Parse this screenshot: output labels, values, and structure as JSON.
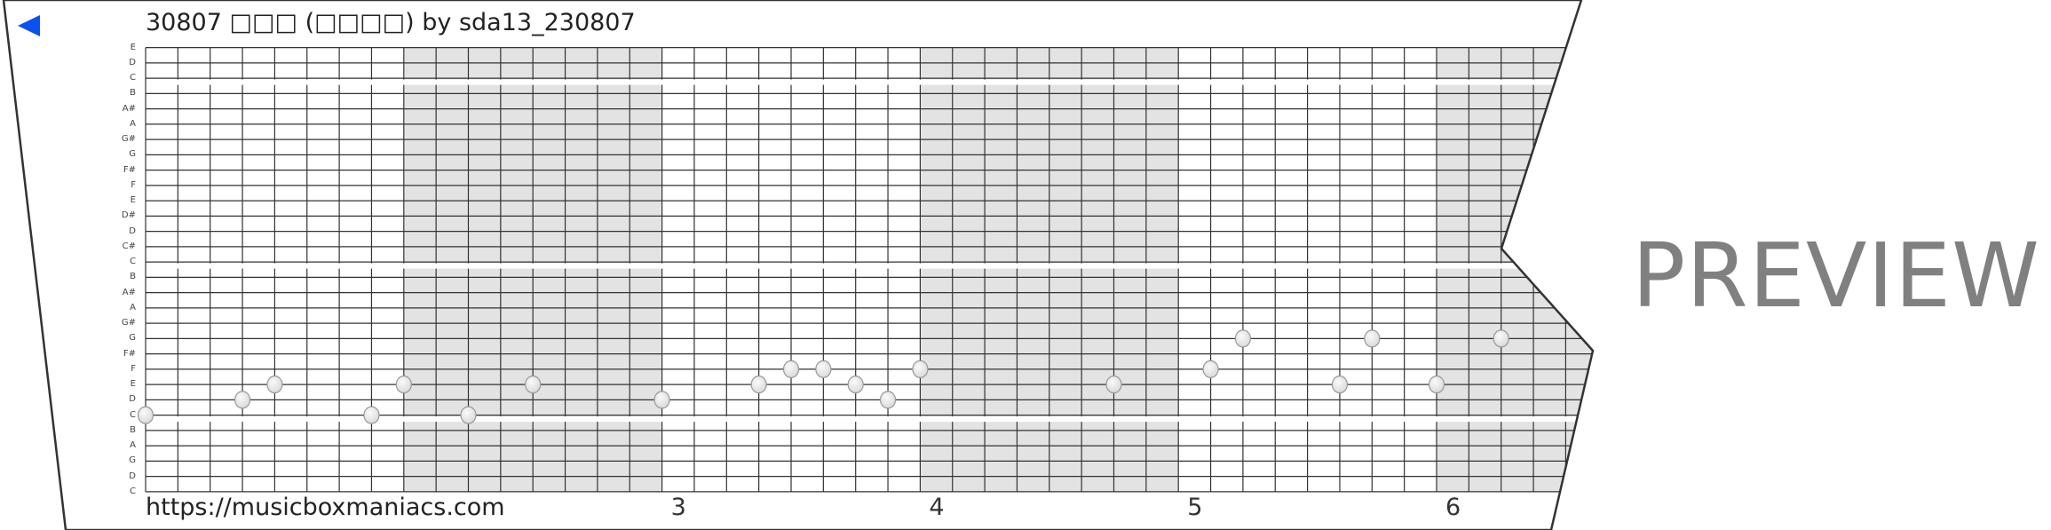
{
  "header": {
    "title": "30807 □□□ (□□□□) by sda13_230807",
    "back_icon": "triangle-left-icon",
    "back_color": "#0a52f0"
  },
  "grid": {
    "row_labels": [
      "E",
      "D",
      "C",
      "B",
      "A#",
      "A",
      "G#",
      "G",
      "F#",
      "F",
      "E",
      "D#",
      "D",
      "C#",
      "C",
      "B",
      "A#",
      "A",
      "G#",
      "G",
      "F#",
      "F",
      "E",
      "D",
      "C",
      "B",
      "A",
      "G",
      "D",
      "C"
    ],
    "measure_labels": [
      "3",
      "4",
      "5",
      "6"
    ],
    "shaded_color": "#e3e3e3",
    "notes": [
      {
        "col": 0,
        "row": 24
      },
      {
        "col": 3,
        "row": 23
      },
      {
        "col": 4,
        "row": 22
      },
      {
        "col": 7,
        "row": 24
      },
      {
        "col": 8,
        "row": 22
      },
      {
        "col": 10,
        "row": 24
      },
      {
        "col": 12,
        "row": 22
      },
      {
        "col": 16,
        "row": 23
      },
      {
        "col": 19,
        "row": 22
      },
      {
        "col": 20,
        "row": 21
      },
      {
        "col": 21,
        "row": 21
      },
      {
        "col": 22,
        "row": 22
      },
      {
        "col": 23,
        "row": 23
      },
      {
        "col": 24,
        "row": 21
      },
      {
        "col": 30,
        "row": 22
      },
      {
        "col": 33,
        "row": 21
      },
      {
        "col": 34,
        "row": 19
      },
      {
        "col": 37,
        "row": 22
      },
      {
        "col": 38,
        "row": 19
      },
      {
        "col": 40,
        "row": 22
      },
      {
        "col": 42,
        "row": 19
      }
    ]
  },
  "footer": {
    "url": "https://musicboxmaniacs.com"
  },
  "watermark": {
    "text": "PREVIEW"
  }
}
